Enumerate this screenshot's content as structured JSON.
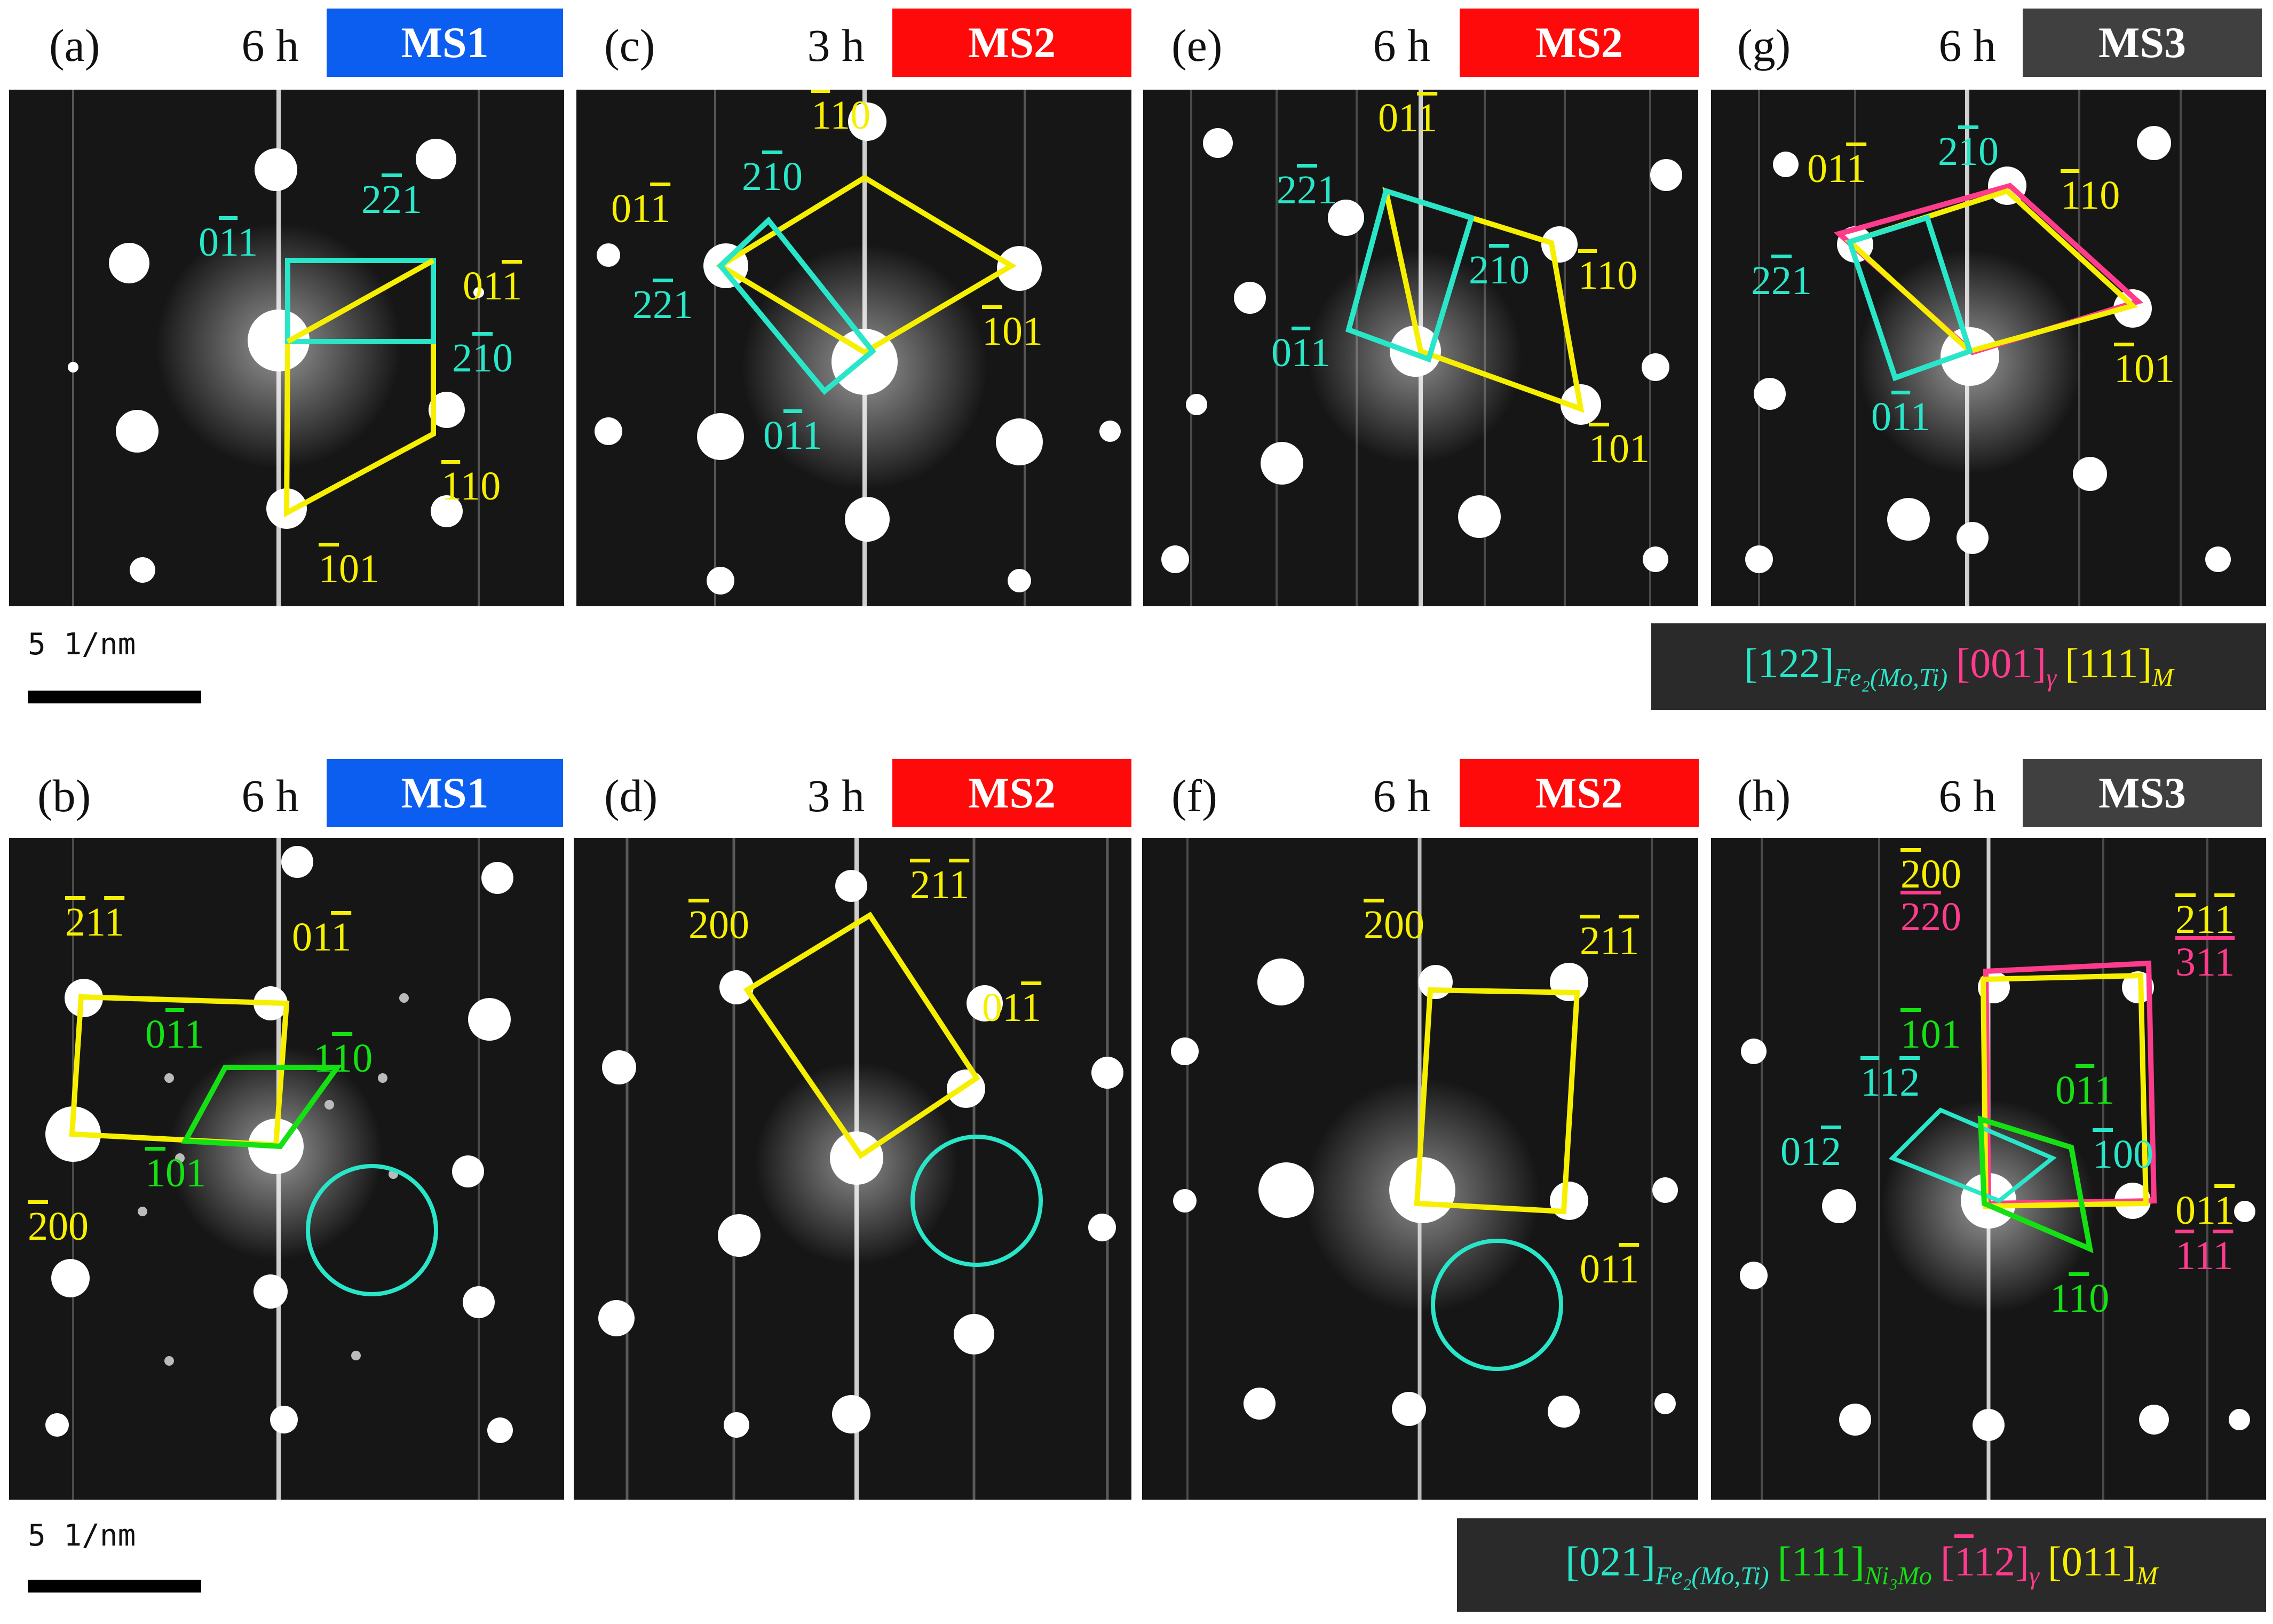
{
  "colors": {
    "MS1": "#0b5ef0",
    "MS2": "#ff0a0a",
    "MS3": "#404040",
    "yellow": "#f6f000",
    "cyan": "#29e6c8",
    "green": "#14e014",
    "pink": "#ff3c8c"
  },
  "scale_bar": {
    "label": "5 1/nm"
  },
  "panels": [
    {
      "id": "a",
      "letter": "(a)",
      "time": "6 h",
      "tag": "MS1",
      "labels": [
        {
          "c": "cyan",
          "t": [
            [
              "0",
              0
            ],
            [
              "1",
              1
            ],
            [
              "1",
              0
            ]
          ]
        },
        {
          "c": "cyan",
          "t": [
            [
              "2",
              0
            ],
            [
              "2",
              1
            ],
            [
              "1",
              0
            ]
          ]
        },
        {
          "c": "yellow",
          "t": [
            [
              "0",
              0
            ],
            [
              "1",
              0
            ],
            [
              "1",
              1
            ]
          ]
        },
        {
          "c": "cyan",
          "t": [
            [
              "2",
              0
            ],
            [
              "1",
              1
            ],
            [
              "0",
              0
            ]
          ]
        },
        {
          "c": "yellow",
          "t": [
            [
              "1",
              1
            ],
            [
              "1",
              0
            ],
            [
              "0",
              0
            ]
          ]
        },
        {
          "c": "yellow",
          "t": [
            [
              "1",
              1
            ],
            [
              "0",
              0
            ],
            [
              "1",
              0
            ]
          ]
        }
      ]
    },
    {
      "id": "b",
      "letter": "(b)",
      "time": "6 h",
      "tag": "MS1",
      "labels": [
        {
          "c": "yellow",
          "t": [
            [
              "2",
              1
            ],
            [
              "1",
              0
            ],
            [
              "1",
              1
            ]
          ]
        },
        {
          "c": "yellow",
          "t": [
            [
              "0",
              0
            ],
            [
              "1",
              0
            ],
            [
              "1",
              1
            ]
          ]
        },
        {
          "c": "green",
          "t": [
            [
              "0",
              0
            ],
            [
              "1",
              1
            ],
            [
              "1",
              0
            ]
          ]
        },
        {
          "c": "green",
          "t": [
            [
              "1",
              0
            ],
            [
              "1",
              1
            ],
            [
              "0",
              0
            ]
          ]
        },
        {
          "c": "green",
          "t": [
            [
              "1",
              1
            ],
            [
              "0",
              0
            ],
            [
              "1",
              0
            ]
          ]
        },
        {
          "c": "yellow",
          "t": [
            [
              "2",
              1
            ],
            [
              "0",
              0
            ],
            [
              "0",
              0
            ]
          ]
        }
      ]
    },
    {
      "id": "c",
      "letter": "(c)",
      "time": "3 h",
      "tag": "MS2",
      "labels": [
        {
          "c": "yellow",
          "t": [
            [
              "1",
              1
            ],
            [
              "1",
              0
            ],
            [
              "0",
              0
            ]
          ]
        },
        {
          "c": "cyan",
          "t": [
            [
              "2",
              0
            ],
            [
              "1",
              1
            ],
            [
              "0",
              0
            ]
          ]
        },
        {
          "c": "yellow",
          "t": [
            [
              "0",
              0
            ],
            [
              "1",
              0
            ],
            [
              "1",
              1
            ]
          ]
        },
        {
          "c": "cyan",
          "t": [
            [
              "2",
              0
            ],
            [
              "2",
              1
            ],
            [
              "1",
              0
            ]
          ]
        },
        {
          "c": "yellow",
          "t": [
            [
              "1",
              1
            ],
            [
              "0",
              0
            ],
            [
              "1",
              0
            ]
          ]
        },
        {
          "c": "cyan",
          "t": [
            [
              "0",
              0
            ],
            [
              "1",
              1
            ],
            [
              "1",
              0
            ]
          ]
        }
      ]
    },
    {
      "id": "d",
      "letter": "(d)",
      "time": "3 h",
      "tag": "MS2",
      "labels": [
        {
          "c": "yellow",
          "t": [
            [
              "2",
              1
            ],
            [
              "0",
              0
            ],
            [
              "0",
              0
            ]
          ]
        },
        {
          "c": "yellow",
          "t": [
            [
              "2",
              1
            ],
            [
              "1",
              0
            ],
            [
              "1",
              1
            ]
          ]
        },
        {
          "c": "yellow",
          "t": [
            [
              "0",
              0
            ],
            [
              "1",
              0
            ],
            [
              "1",
              1
            ]
          ]
        }
      ]
    },
    {
      "id": "e",
      "letter": "(e)",
      "time": "6 h",
      "tag": "MS2",
      "labels": [
        {
          "c": "yellow",
          "t": [
            [
              "0",
              0
            ],
            [
              "1",
              0
            ],
            [
              "1",
              1
            ]
          ]
        },
        {
          "c": "cyan",
          "t": [
            [
              "2",
              0
            ],
            [
              "2",
              1
            ],
            [
              "1",
              0
            ]
          ]
        },
        {
          "c": "cyan",
          "t": [
            [
              "2",
              0
            ],
            [
              "1",
              1
            ],
            [
              "0",
              0
            ]
          ]
        },
        {
          "c": "yellow",
          "t": [
            [
              "1",
              1
            ],
            [
              "1",
              0
            ],
            [
              "0",
              0
            ]
          ]
        },
        {
          "c": "cyan",
          "t": [
            [
              "0",
              0
            ],
            [
              "1",
              1
            ],
            [
              "1",
              0
            ]
          ]
        },
        {
          "c": "yellow",
          "t": [
            [
              "1",
              1
            ],
            [
              "0",
              0
            ],
            [
              "1",
              0
            ]
          ]
        }
      ]
    },
    {
      "id": "f",
      "letter": "(f)",
      "time": "6 h",
      "tag": "MS2",
      "labels": [
        {
          "c": "yellow",
          "t": [
            [
              "2",
              1
            ],
            [
              "0",
              0
            ],
            [
              "0",
              0
            ]
          ]
        },
        {
          "c": "yellow",
          "t": [
            [
              "2",
              1
            ],
            [
              "1",
              0
            ],
            [
              "1",
              1
            ]
          ]
        },
        {
          "c": "yellow",
          "t": [
            [
              "0",
              0
            ],
            [
              "1",
              0
            ],
            [
              "1",
              1
            ]
          ]
        }
      ]
    },
    {
      "id": "g",
      "letter": "(g)",
      "time": "6 h",
      "tag": "MS3",
      "labels": [
        {
          "c": "yellow",
          "t": [
            [
              "0",
              0
            ],
            [
              "1",
              0
            ],
            [
              "1",
              1
            ]
          ]
        },
        {
          "c": "cyan",
          "t": [
            [
              "2",
              0
            ],
            [
              "1",
              1
            ],
            [
              "0",
              0
            ]
          ]
        },
        {
          "c": "yellow",
          "t": [
            [
              "1",
              1
            ],
            [
              "1",
              0
            ],
            [
              "0",
              0
            ]
          ]
        },
        {
          "c": "cyan",
          "t": [
            [
              "2",
              0
            ],
            [
              "2",
              1
            ],
            [
              "1",
              0
            ]
          ]
        },
        {
          "c": "yellow",
          "t": [
            [
              "1",
              1
            ],
            [
              "0",
              0
            ],
            [
              "1",
              0
            ]
          ]
        },
        {
          "c": "cyan",
          "t": [
            [
              "0",
              0
            ],
            [
              "1",
              1
            ],
            [
              "1",
              0
            ]
          ]
        }
      ]
    },
    {
      "id": "h",
      "letter": "(h)",
      "time": "6 h",
      "tag": "MS3",
      "labels": [
        {
          "c": "yellow",
          "t": [
            [
              "2",
              1
            ],
            [
              "0",
              0
            ],
            [
              "0",
              0
            ]
          ]
        },
        {
          "c": "pink",
          "t": [
            [
              "2",
              1
            ],
            [
              "2",
              1
            ],
            [
              "0",
              0
            ]
          ]
        },
        {
          "c": "yellow",
          "t": [
            [
              "2",
              1
            ],
            [
              "1",
              0
            ],
            [
              "1",
              1
            ]
          ]
        },
        {
          "c": "pink",
          "t": [
            [
              "3",
              1
            ],
            [
              "1",
              1
            ],
            [
              "1",
              1
            ]
          ]
        },
        {
          "c": "green",
          "t": [
            [
              "1",
              1
            ],
            [
              "0",
              0
            ],
            [
              "1",
              0
            ]
          ]
        },
        {
          "c": "cyan",
          "t": [
            [
              "1",
              1
            ],
            [
              "1",
              0
            ],
            [
              "2",
              1
            ]
          ]
        },
        {
          "c": "green",
          "t": [
            [
              "0",
              0
            ],
            [
              "1",
              1
            ],
            [
              "1",
              0
            ]
          ]
        },
        {
          "c": "cyan",
          "t": [
            [
              "0",
              0
            ],
            [
              "1",
              0
            ],
            [
              "2",
              1
            ]
          ]
        },
        {
          "c": "cyan",
          "t": [
            [
              "1",
              1
            ],
            [
              "0",
              0
            ],
            [
              "0",
              0
            ]
          ]
        },
        {
          "c": "yellow",
          "t": [
            [
              "0",
              0
            ],
            [
              "1",
              0
            ],
            [
              "1",
              1
            ]
          ]
        },
        {
          "c": "pink",
          "t": [
            [
              "1",
              1
            ],
            [
              "1",
              0
            ],
            [
              "1",
              1
            ]
          ]
        },
        {
          "c": "green",
          "t": [
            [
              "1",
              0
            ],
            [
              "1",
              1
            ],
            [
              "0",
              0
            ]
          ]
        }
      ]
    }
  ],
  "legends": [
    {
      "items": [
        {
          "c": "cyan",
          "zone": "[122]",
          "sub": "Fe₂(Mo,Ti)"
        },
        {
          "c": "pink",
          "zone": "[001]",
          "sub": "γ"
        },
        {
          "c": "yellow",
          "zone": "[111]",
          "sub": "M"
        }
      ]
    },
    {
      "items": [
        {
          "c": "cyan",
          "zone": "[021]",
          "sub": "Fe₂(Mo,Ti)"
        },
        {
          "c": "green",
          "zone": "[111]",
          "sub": "Ni₃Mo"
        },
        {
          "c": "pink",
          "zone": "[112]",
          "zone_bar": 1,
          "sub": "γ"
        },
        {
          "c": "yellow",
          "zone": "[011]",
          "sub": "M"
        }
      ]
    }
  ]
}
